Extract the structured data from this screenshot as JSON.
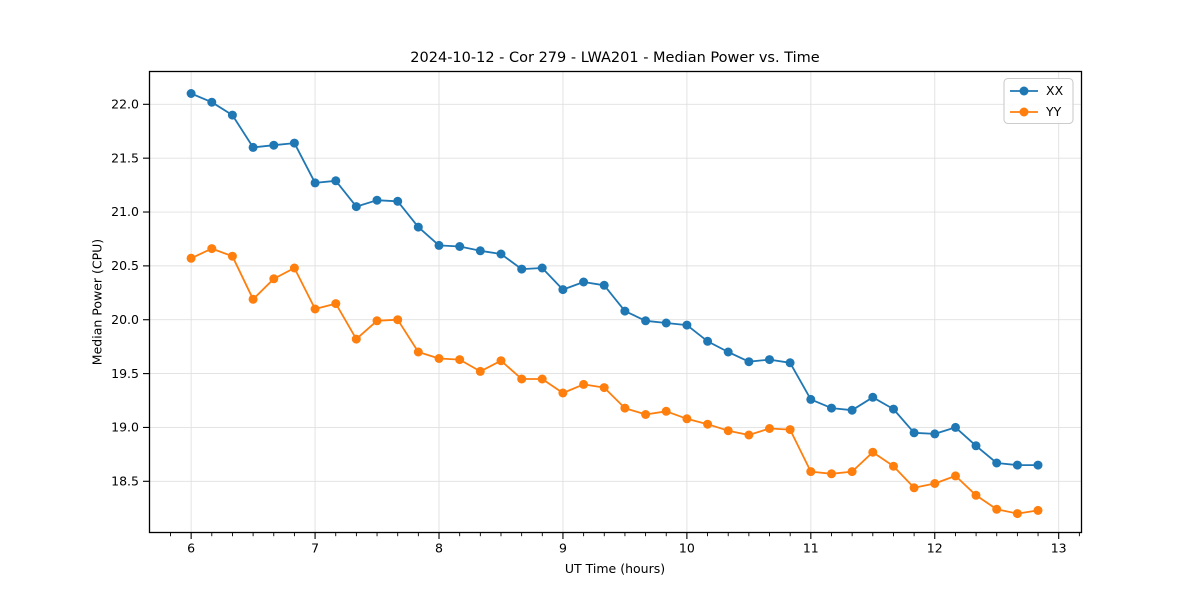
{
  "figure": {
    "background": "#ffffff",
    "text_color": "#000000",
    "grid_color": "#e0e0e0",
    "spine_color": "#000000",
    "legend_border_color": "#cccccc"
  },
  "chart_data": {
    "type": "line",
    "title": "2024-10-12 - Cor 279 - LWA201 - Median Power vs. Time",
    "xlabel": "UT Time (hours)",
    "ylabel": "Median Power (CPU)",
    "xlim": [
      5.66,
      13.18
    ],
    "ylim": [
      18.02,
      22.3
    ],
    "x_major_ticks": [
      6,
      7,
      8,
      9,
      10,
      11,
      12,
      13
    ],
    "x_minor_tick_step": 0.16667,
    "y_major_ticks": [
      18.5,
      19.0,
      19.5,
      20.0,
      20.5,
      21.0,
      21.5,
      22.0
    ],
    "grid": true,
    "legend_position": "upper right",
    "x": [
      6.0,
      6.167,
      6.333,
      6.5,
      6.667,
      6.833,
      7.0,
      7.167,
      7.333,
      7.5,
      7.667,
      7.833,
      8.0,
      8.167,
      8.333,
      8.5,
      8.667,
      8.833,
      9.0,
      9.167,
      9.333,
      9.5,
      9.667,
      9.833,
      10.0,
      10.167,
      10.333,
      10.5,
      10.667,
      10.833,
      11.0,
      11.167,
      11.333,
      11.5,
      11.667,
      11.833,
      12.0,
      12.167,
      12.333,
      12.5,
      12.667,
      12.833
    ],
    "series": [
      {
        "name": "XX",
        "color": "#1f77b4",
        "values": [
          22.1,
          22.02,
          21.9,
          21.6,
          21.62,
          21.64,
          21.27,
          21.29,
          21.05,
          21.11,
          21.1,
          20.86,
          20.69,
          20.68,
          20.64,
          20.61,
          20.47,
          20.48,
          20.28,
          20.35,
          20.32,
          20.08,
          19.99,
          19.97,
          19.95,
          19.8,
          19.7,
          19.61,
          19.63,
          19.6,
          19.26,
          19.18,
          19.16,
          19.28,
          19.17,
          18.95,
          18.94,
          19.0,
          18.83,
          18.67,
          18.65,
          18.65
        ]
      },
      {
        "name": "YY",
        "color": "#ff7f0e",
        "values": [
          20.57,
          20.66,
          20.59,
          20.19,
          20.38,
          20.48,
          20.1,
          20.15,
          19.82,
          19.99,
          20.0,
          19.7,
          19.64,
          19.63,
          19.52,
          19.62,
          19.45,
          19.45,
          19.32,
          19.4,
          19.37,
          19.18,
          19.12,
          19.15,
          19.08,
          19.03,
          18.97,
          18.93,
          18.99,
          18.98,
          18.59,
          18.57,
          18.59,
          18.77,
          18.64,
          18.44,
          18.48,
          18.55,
          18.37,
          18.24,
          18.2,
          18.23
        ]
      }
    ]
  }
}
